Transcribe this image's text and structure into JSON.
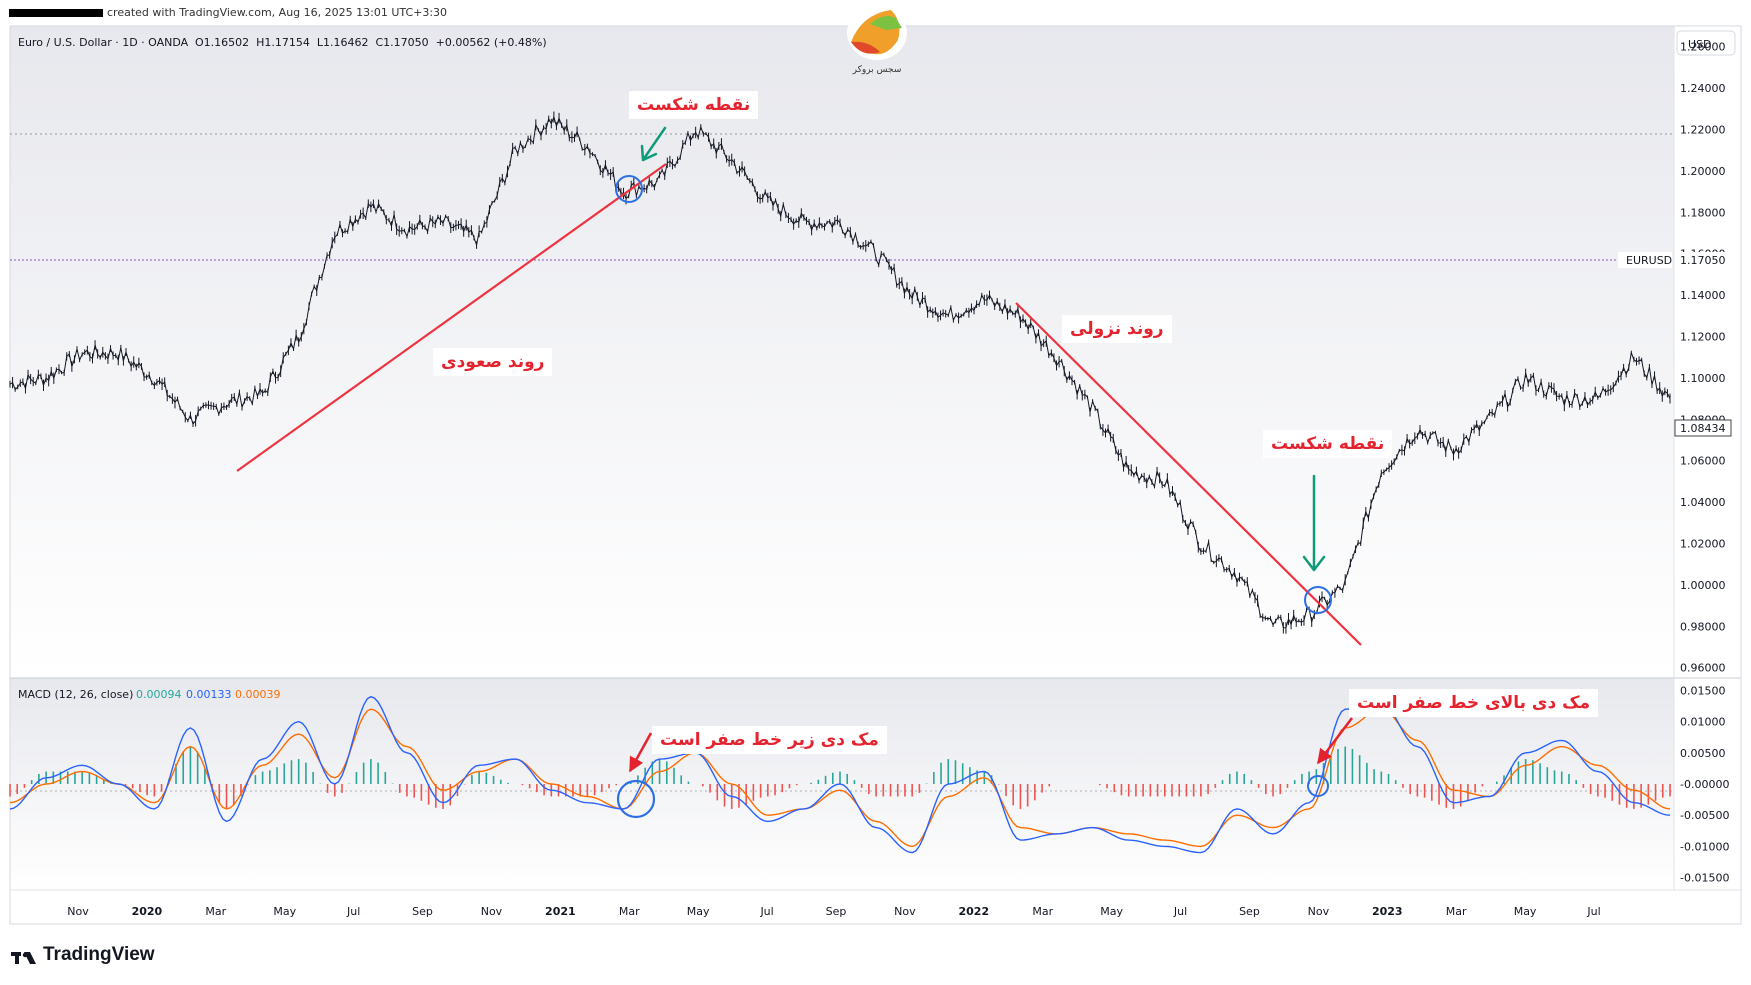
{
  "header": {
    "created_text": "created with TradingView.com, Aug 16, 2025 13:01 UTC+3:30",
    "symbol_line": "Euro / U.S. Dollar · 1D · OANDA",
    "ohlc": "O1.16502  H1.17154  L1.16462  C1.17050  +0.00562 (+0.48%)",
    "currency": "USD"
  },
  "brand": {
    "logo_caption": "سجس بروکر"
  },
  "price_axis": {
    "ticks": [
      "1.26000",
      "1.24000",
      "1.22000",
      "1.20000",
      "1.18000",
      "1.16000",
      "1.14000",
      "1.12000",
      "1.10000",
      "1.08000",
      "1.06000",
      "1.04000",
      "1.02000",
      "1.00000",
      "0.98000",
      "0.96000"
    ],
    "symbol_label": "EURUSD",
    "last_price_label": "1.17050",
    "cursor_price_label": "1.08434"
  },
  "macd": {
    "label": "MACD (12, 26, close)",
    "values": [
      "0.00094",
      "0.00133",
      "0.00039"
    ],
    "value_colors": [
      "#26a69a",
      "#2962ff",
      "#ff6d00"
    ],
    "ticks": [
      "0.01500",
      "0.01000",
      "0.00500",
      "-0.00000",
      "-0.00500",
      "-0.01000",
      "-0.01500"
    ]
  },
  "time_axis": [
    "Nov",
    "2020",
    "Mar",
    "May",
    "Jul",
    "Sep",
    "Nov",
    "2021",
    "Mar",
    "May",
    "Jul",
    "Sep",
    "Nov",
    "2022",
    "Mar",
    "May",
    "Jul",
    "Sep",
    "Nov",
    "2023",
    "Mar",
    "May",
    "Jul"
  ],
  "annotations": {
    "breakpoint_top": "نقطه شکست",
    "uptrend": "روند صعودی",
    "downtrend": "روند نزولی",
    "breakpoint_bottom": "نقطه شکست",
    "macd_below": "مک دی زیر خط صفر است",
    "macd_above": "مک دی بالای خط صفر است"
  },
  "footer": {
    "brand": "TradingView"
  },
  "colors": {
    "trendline": "#ef3340",
    "arrow_green": "#0f9b7a",
    "circle": "#2f6fe4",
    "macd_line": "#2962ff",
    "signal_line": "#ff6d00",
    "hist_pos": "#26a69a",
    "hist_neg": "#ef5350"
  },
  "chart_data": [
    {
      "type": "line",
      "title": "Euro / U.S. Dollar · 1D · OANDA",
      "ylim": [
        0.955,
        1.27
      ],
      "x": [
        "2019-10-01",
        "2019-11-01",
        "2019-12-01",
        "2020-01-01",
        "2020-02-01",
        "2020-03-01",
        "2020-04-01",
        "2020-05-01",
        "2020-06-01",
        "2020-07-01",
        "2020-08-01",
        "2020-09-01",
        "2020-10-01",
        "2020-11-01",
        "2020-12-01",
        "2021-01-01",
        "2021-02-01",
        "2021-03-01",
        "2021-04-01",
        "2021-05-01",
        "2021-06-01",
        "2021-07-01",
        "2021-08-01",
        "2021-09-01",
        "2021-10-01",
        "2021-11-01",
        "2021-12-01",
        "2022-01-01",
        "2022-02-01",
        "2022-03-01",
        "2022-04-01",
        "2022-05-01",
        "2022-06-01",
        "2022-07-01",
        "2022-08-01",
        "2022-09-01",
        "2022-10-01",
        "2022-11-01",
        "2022-12-01",
        "2023-01-01",
        "2023-02-01",
        "2023-03-01",
        "2023-04-01",
        "2023-05-01",
        "2023-06-01",
        "2023-07-01",
        "2023-08-01"
      ],
      "series": [
        {
          "values": [
            1.097,
            1.1,
            1.112,
            1.112,
            1.1,
            1.08,
            1.088,
            1.092,
            1.12,
            1.17,
            1.183,
            1.172,
            1.175,
            1.167,
            1.21,
            1.225,
            1.212,
            1.19,
            1.195,
            1.22,
            1.205,
            1.185,
            1.175,
            1.175,
            1.16,
            1.14,
            1.13,
            1.138,
            1.13,
            1.11,
            1.085,
            1.055,
            1.05,
            1.02,
            1.005,
            0.98,
            0.985,
            1.0,
            1.055,
            1.075,
            1.065,
            1.08,
            1.1,
            1.09,
            1.09,
            1.11,
            1.09
          ]
        }
      ]
    },
    {
      "type": "line",
      "title": "MACD (12, 26, close)",
      "ylim": [
        -0.017,
        0.017
      ],
      "x": [
        "2019-10-01",
        "2019-11-01",
        "2019-12-01",
        "2020-01-01",
        "2020-02-01",
        "2020-03-01",
        "2020-04-01",
        "2020-05-01",
        "2020-06-01",
        "2020-07-01",
        "2020-08-01",
        "2020-09-01",
        "2020-10-01",
        "2020-11-01",
        "2020-12-01",
        "2021-01-01",
        "2021-02-01",
        "2021-03-01",
        "2021-04-01",
        "2021-05-01",
        "2021-06-01",
        "2021-07-01",
        "2021-08-01",
        "2021-09-01",
        "2021-10-01",
        "2021-11-01",
        "2021-12-01",
        "2022-01-01",
        "2022-02-01",
        "2022-03-01",
        "2022-04-01",
        "2022-05-01",
        "2022-06-01",
        "2022-07-01",
        "2022-08-01",
        "2022-09-01",
        "2022-10-01",
        "2022-11-01",
        "2022-12-01",
        "2023-01-01",
        "2023-02-01",
        "2023-03-01",
        "2023-04-01",
        "2023-05-01",
        "2023-06-01",
        "2023-07-01",
        "2023-08-01"
      ],
      "series": [
        {
          "name": "MACD",
          "values": [
            -0.004,
            0.001,
            0.003,
            0.0,
            -0.004,
            0.009,
            -0.006,
            0.004,
            0.01,
            0.0,
            0.014,
            0.005,
            -0.003,
            0.003,
            0.004,
            -0.001,
            -0.003,
            -0.004,
            0.004,
            0.005,
            -0.002,
            -0.006,
            -0.004,
            0.0,
            -0.007,
            -0.011,
            0.0,
            0.002,
            -0.009,
            -0.008,
            -0.007,
            -0.009,
            -0.01,
            -0.011,
            -0.004,
            -0.008,
            -0.003,
            0.012,
            0.013,
            0.006,
            -0.003,
            -0.002,
            0.005,
            0.007,
            0.002,
            -0.003,
            -0.005
          ]
        },
        {
          "name": "Signal",
          "values": [
            -0.003,
            0.0,
            0.002,
            0.0,
            -0.003,
            0.006,
            -0.004,
            0.003,
            0.008,
            0.001,
            0.012,
            0.006,
            -0.001,
            0.002,
            0.004,
            0.0,
            -0.002,
            -0.004,
            0.002,
            0.005,
            0.0,
            -0.005,
            -0.004,
            -0.001,
            -0.006,
            -0.01,
            -0.002,
            0.001,
            -0.007,
            -0.008,
            -0.007,
            -0.008,
            -0.009,
            -0.01,
            -0.005,
            -0.007,
            -0.004,
            0.009,
            0.012,
            0.007,
            -0.001,
            -0.002,
            0.003,
            0.006,
            0.003,
            -0.001,
            -0.004
          ]
        }
      ]
    }
  ]
}
